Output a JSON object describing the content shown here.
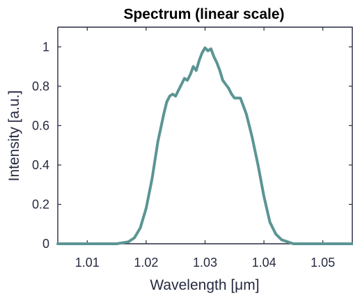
{
  "chart_data": {
    "type": "line",
    "title": "Spectrum (linear scale)",
    "xlabel": "Wavelength [μm]",
    "ylabel": "Intensity [a.u.]",
    "xlim": [
      1.005,
      1.055
    ],
    "ylim": [
      0,
      1.1
    ],
    "xticks": [
      1.01,
      1.02,
      1.03,
      1.04,
      1.05
    ],
    "xtick_labels": [
      "1.01",
      "1.02",
      "1.03",
      "1.04",
      "1.05"
    ],
    "yticks": [
      0,
      0.2,
      0.4,
      0.6,
      0.8,
      1
    ],
    "ytick_labels": [
      "0",
      "0.2",
      "0.4",
      "0.6",
      "0.8",
      "1"
    ],
    "grid": false,
    "series": [
      {
        "color": "#5b9594",
        "x": [
          1.005,
          1.015,
          1.017,
          1.018,
          1.019,
          1.02,
          1.021,
          1.022,
          1.023,
          1.0235,
          1.024,
          1.0245,
          1.025,
          1.0255,
          1.026,
          1.0265,
          1.027,
          1.0275,
          1.028,
          1.0285,
          1.029,
          1.0295,
          1.03,
          1.0305,
          1.031,
          1.0315,
          1.032,
          1.0325,
          1.033,
          1.0335,
          1.034,
          1.0345,
          1.035,
          1.0355,
          1.036,
          1.0365,
          1.037,
          1.0375,
          1.038,
          1.039,
          1.04,
          1.041,
          1.042,
          1.043,
          1.044,
          1.045,
          1.046,
          1.047,
          1.055
        ],
        "y": [
          0.0,
          0.0,
          0.01,
          0.03,
          0.08,
          0.18,
          0.33,
          0.52,
          0.66,
          0.72,
          0.75,
          0.76,
          0.75,
          0.78,
          0.81,
          0.84,
          0.83,
          0.86,
          0.9,
          0.88,
          0.93,
          0.97,
          0.995,
          0.98,
          0.99,
          0.95,
          0.92,
          0.88,
          0.83,
          0.81,
          0.79,
          0.76,
          0.74,
          0.74,
          0.74,
          0.7,
          0.66,
          0.6,
          0.54,
          0.4,
          0.24,
          0.11,
          0.05,
          0.02,
          0.01,
          0.0,
          0.0,
          0.0,
          0.0
        ]
      }
    ]
  }
}
